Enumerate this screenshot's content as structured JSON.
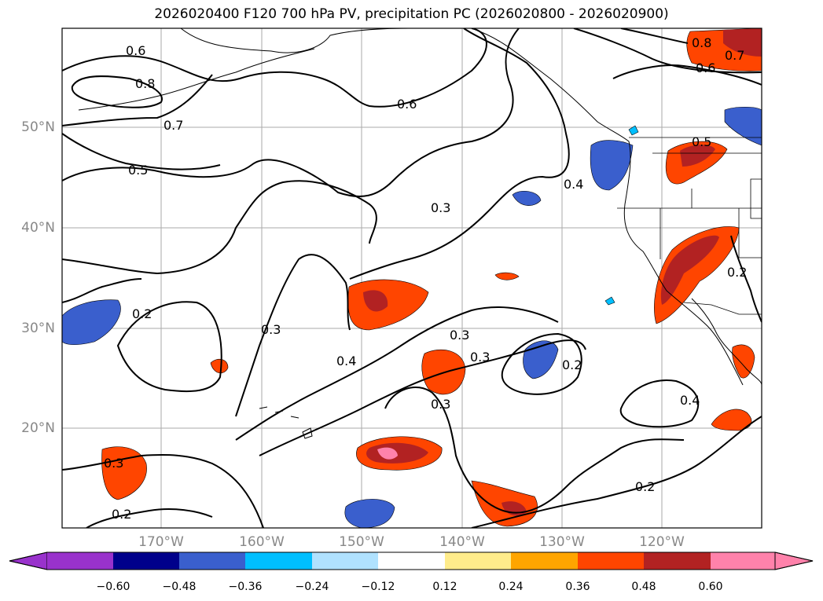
{
  "title": "2026020400 F120 700 hPa PV, precipitation PC (2026020800 - 2026020900)",
  "map": {
    "lat_labels": [
      "50°N",
      "40°N",
      "30°N",
      "20°N"
    ],
    "lon_labels": [
      "170°W",
      "160°W",
      "150°W",
      "140°W",
      "130°W",
      "120°W"
    ],
    "contour_labels": [
      "0.6",
      "0.8",
      "0.7",
      "0.5",
      "0.6",
      "0.3",
      "0.4",
      "0.2",
      "0.3",
      "0.3",
      "0.4",
      "0.3",
      "0.2",
      "0.3",
      "0.4",
      "0.2",
      "0.3",
      "0.2",
      "0.8",
      "0.7",
      "0.6",
      "0.5",
      "0.2"
    ]
  },
  "colorbar": {
    "ticks": [
      "−0.60",
      "−0.48",
      "−0.36",
      "−0.24",
      "−0.12",
      "0.12",
      "0.24",
      "0.36",
      "0.48",
      "0.60"
    ],
    "colors": [
      "#9932cc",
      "#00008b",
      "#3a5fcd",
      "#00bfff",
      "#b0e2ff",
      "#ffffff",
      "#ffec8b",
      "#ffa500",
      "#ff4500",
      "#b22222",
      "#ff82ab"
    ]
  }
}
